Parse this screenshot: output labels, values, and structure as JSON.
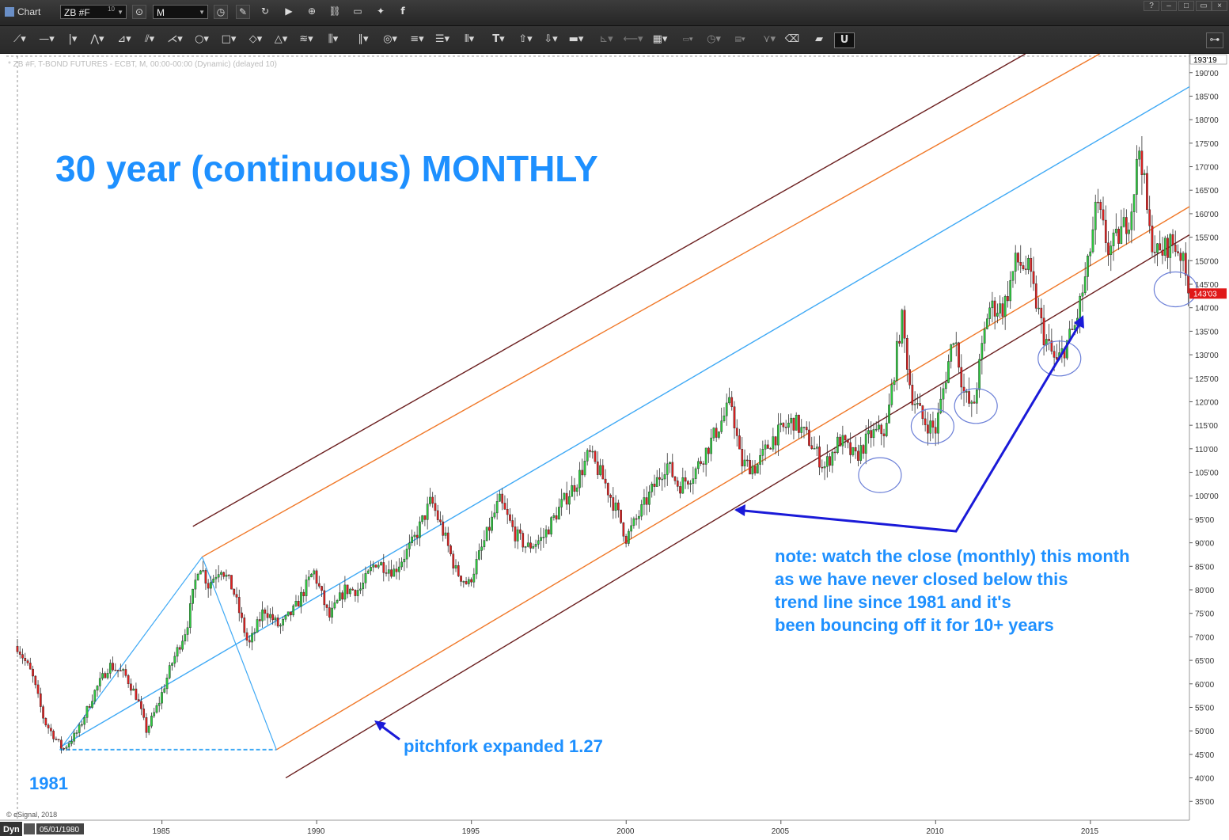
{
  "window": {
    "title": "Chart",
    "symbol": "ZB #F",
    "symbol_badge": "10",
    "interval": "M",
    "help_btn": "?",
    "min_btn": "–",
    "restore_btn": "□",
    "close_btn": "×"
  },
  "chart_info": "* ZB #F, T-BOND FUTURES - ECBT, M, 00:00-00:00 (Dynamic) (delayed 10)",
  "copyright": "© eSignal, 2018",
  "bottom_bar": {
    "mode": "Dyn",
    "start_date": "05/01/1980"
  },
  "colors": {
    "title_blue": "#1e90ff",
    "up_candle": "#2ecc40",
    "down_candle": "#e02020",
    "fork_brown": "#6b1f1f",
    "fork_orange": "#f07828",
    "fork_blue": "#3fa9f5",
    "arrow_blue": "#1a1ad8",
    "price_tag": "#e01818"
  },
  "icons": [
    "line-tool-icon",
    "trend-icon",
    "fib-icon",
    "ellipse-icon",
    "rectangle-icon",
    "text-tool-icon",
    "arrow-up-icon",
    "arrow-down-icon",
    "magnet-icon"
  ],
  "chart_data": {
    "type": "candlestick",
    "title": "30 year (continuous) MONTHLY",
    "x_ticks": [
      "1985",
      "1990",
      "1995",
      "2000",
      "2005",
      "2010",
      "2015"
    ],
    "y_ticks": [
      "190'00",
      "185'00",
      "180'00",
      "175'00",
      "170'00",
      "165'00",
      "160'00",
      "155'00",
      "150'00",
      "145'00",
      "140'00",
      "135'00",
      "130'00",
      "125'00",
      "120'00",
      "115'00",
      "110'00",
      "105'00",
      "100'00",
      "95'00",
      "90'00",
      "85'00",
      "80'00",
      "75'00",
      "70'00",
      "65'00",
      "60'00",
      "55'00",
      "50'00",
      "45'00",
      "40'00",
      "35'00"
    ],
    "ylim": [
      31,
      194
    ],
    "xlim": [
      1980.33,
      2018.2
    ],
    "top_price_label": "193'19",
    "current_price_label": "143'03",
    "current_price": 143.1,
    "price_path": [
      [
        1980.33,
        68
      ],
      [
        1980.8,
        62
      ],
      [
        1981.2,
        52
      ],
      [
        1981.8,
        46
      ],
      [
        1982.3,
        50
      ],
      [
        1982.8,
        58
      ],
      [
        1983.3,
        64
      ],
      [
        1983.8,
        62
      ],
      [
        1984.2,
        57
      ],
      [
        1984.5,
        50
      ],
      [
        1984.9,
        56
      ],
      [
        1985.3,
        64
      ],
      [
        1985.8,
        72
      ],
      [
        1986.2,
        86
      ],
      [
        1986.5,
        81
      ],
      [
        1986.9,
        85
      ],
      [
        1987.3,
        80
      ],
      [
        1987.8,
        68
      ],
      [
        1988.3,
        76
      ],
      [
        1988.8,
        72
      ],
      [
        1989.3,
        76
      ],
      [
        1989.9,
        84
      ],
      [
        1990.4,
        74
      ],
      [
        1990.9,
        80
      ],
      [
        1991.4,
        80
      ],
      [
        1991.9,
        86
      ],
      [
        1992.5,
        84
      ],
      [
        1993.1,
        90
      ],
      [
        1993.7,
        99
      ],
      [
        1994.1,
        92
      ],
      [
        1994.5,
        84
      ],
      [
        1994.9,
        81
      ],
      [
        1995.4,
        90
      ],
      [
        1995.9,
        99
      ],
      [
        1996.4,
        92
      ],
      [
        1996.8,
        89
      ],
      [
        1997.3,
        91
      ],
      [
        1997.9,
        98
      ],
      [
        1998.4,
        103
      ],
      [
        1998.8,
        109
      ],
      [
        1999.3,
        103
      ],
      [
        1999.8,
        95
      ],
      [
        2000.0,
        91
      ],
      [
        2000.5,
        97
      ],
      [
        2000.9,
        102
      ],
      [
        2001.3,
        107
      ],
      [
        2001.7,
        102
      ],
      [
        2002.2,
        105
      ],
      [
        2002.7,
        111
      ],
      [
        2003.4,
        120
      ],
      [
        2003.7,
        107
      ],
      [
        2004.2,
        106
      ],
      [
        2004.7,
        112
      ],
      [
        2005.4,
        116
      ],
      [
        2005.9,
        112
      ],
      [
        2006.4,
        106
      ],
      [
        2006.9,
        112
      ],
      [
        2007.4,
        108
      ],
      [
        2007.9,
        113
      ],
      [
        2008.4,
        114
      ],
      [
        2008.9,
        138
      ],
      [
        2009.2,
        122
      ],
      [
        2009.6,
        116
      ],
      [
        2010.0,
        114
      ],
      [
        2010.6,
        135
      ],
      [
        2010.9,
        122
      ],
      [
        2011.2,
        118
      ],
      [
        2011.7,
        140
      ],
      [
        2012.2,
        140
      ],
      [
        2012.6,
        150
      ],
      [
        2013.0,
        148
      ],
      [
        2013.5,
        134
      ],
      [
        2013.9,
        128
      ],
      [
        2014.5,
        136
      ],
      [
        2014.9,
        148
      ],
      [
        2015.2,
        162
      ],
      [
        2015.6,
        152
      ],
      [
        2015.9,
        155
      ],
      [
        2016.3,
        160
      ],
      [
        2016.6,
        175
      ],
      [
        2016.9,
        156
      ],
      [
        2017.2,
        151
      ],
      [
        2017.6,
        154
      ],
      [
        2017.9,
        152
      ],
      [
        2018.2,
        143
      ]
    ],
    "pitchfork": {
      "anchors": [
        [
          1981.7,
          46
        ],
        [
          1986.3,
          87
        ],
        [
          1988.7,
          46
        ]
      ],
      "lines": [
        {
          "name": "median",
          "color": "#3fa9f5",
          "points": [
            [
              1981.7,
              46.5
            ],
            [
              2018.2,
              187
            ]
          ]
        },
        {
          "name": "upper-inner",
          "color": "#f07828",
          "points": [
            [
              1986.3,
              87
            ],
            [
              2015.3,
              194
            ]
          ]
        },
        {
          "name": "lower-inner",
          "color": "#f07828",
          "points": [
            [
              1988.7,
              46
            ],
            [
              2018.2,
              161.5
            ]
          ]
        },
        {
          "name": "upper-outer",
          "color": "#6b1f1f",
          "points": [
            [
              1986.0,
              93.5
            ],
            [
              2012.9,
              194
            ]
          ]
        },
        {
          "name": "lower-outer",
          "color": "#6b1f1f",
          "points": [
            [
              1989.0,
              40
            ],
            [
              2018.2,
              155.5
            ]
          ]
        }
      ],
      "base_color": "#3fa9f5"
    },
    "touch_circles": [
      [
        2008.2,
        104.4
      ],
      [
        2009.9,
        114.8
      ],
      [
        2011.3,
        119.1
      ],
      [
        2014.0,
        129.2
      ],
      [
        2017.75,
        143.9
      ]
    ],
    "annotations": {
      "year_1981": "1981",
      "pitchfork": "pitchfork expanded 1.27",
      "note_lines": [
        "note: watch the close (monthly) this month",
        "as we have never closed below this",
        "trend line since 1981 and it's",
        "been bouncing off it for 10+ years"
      ]
    }
  }
}
